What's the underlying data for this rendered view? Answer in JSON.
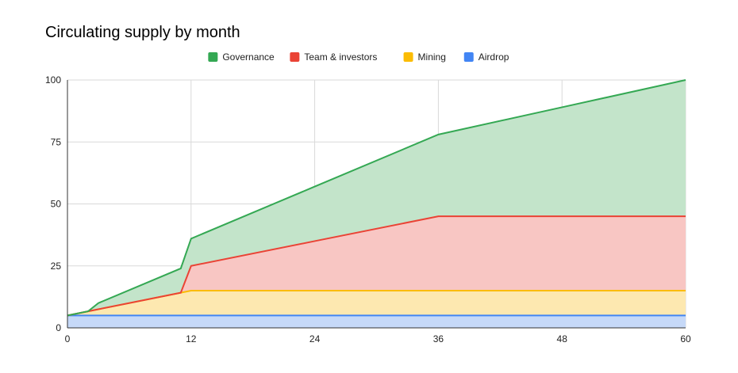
{
  "chart_data": {
    "type": "area",
    "stacked": true,
    "title": "Circulating supply by month",
    "xlabel": "",
    "ylabel": "",
    "x": [
      0,
      2,
      3,
      11,
      12,
      24,
      36,
      48,
      60
    ],
    "xticks": [
      0,
      12,
      24,
      36,
      48,
      60
    ],
    "yticks": [
      0,
      25,
      50,
      75,
      100
    ],
    "xlim": [
      0,
      60
    ],
    "ylim": [
      0,
      100
    ],
    "grid": true,
    "legend": "top-center",
    "series": [
      {
        "name": "Airdrop",
        "color": "#4285f4",
        "fill": "#c6d9f8",
        "values": [
          5,
          5,
          5,
          5,
          5,
          5,
          5,
          5,
          5
        ]
      },
      {
        "name": "Mining",
        "color": "#fbbc04",
        "fill": "#fde8b0",
        "values": [
          0,
          1.67,
          2.5,
          9.17,
          10,
          10,
          10,
          10,
          10
        ]
      },
      {
        "name": "Team & investors",
        "color": "#ea4335",
        "fill": "#f8c6c3",
        "values": [
          0,
          0,
          0,
          0,
          10,
          20,
          30,
          30,
          30
        ]
      },
      {
        "name": "Governance",
        "color": "#34a853",
        "fill": "#c3e4ca",
        "values": [
          0,
          0,
          2.5,
          9.8,
          11,
          22,
          33,
          44,
          55
        ]
      }
    ]
  }
}
